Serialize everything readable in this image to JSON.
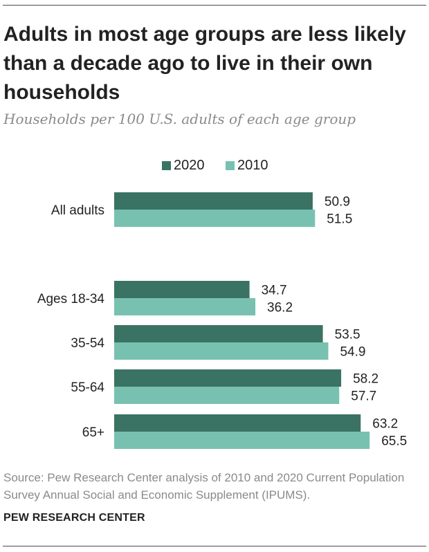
{
  "header": {
    "title": "Adults in most age groups are less likely than a decade ago to live in their own households",
    "subtitle": "Households per 100 U.S. adults of each age group"
  },
  "colors": {
    "series_2020": "#3a7363",
    "series_2010": "#78c1b1"
  },
  "chart_data": {
    "type": "bar",
    "orientation": "horizontal",
    "title": "Adults in most age groups are less likely than a decade ago to live in their own households",
    "subtitle": "Households per 100 U.S. adults of each age group",
    "categories": [
      "All adults",
      "Ages 18-34",
      "35-54",
      "55-64",
      "65+"
    ],
    "series": [
      {
        "name": "2020",
        "values": [
          50.9,
          34.7,
          53.5,
          58.2,
          63.2
        ]
      },
      {
        "name": "2010",
        "values": [
          51.5,
          36.2,
          54.9,
          57.7,
          65.5
        ]
      }
    ],
    "xlabel": "",
    "ylabel": "",
    "xlim": [
      0,
      100
    ],
    "grid": false,
    "legend_position": "top-center"
  },
  "footer": {
    "source": "Source: Pew Research Center analysis of 2010 and 2020 Current Population Survey Annual Social and Economic Supplement (IPUMS).",
    "brand": "PEW RESEARCH CENTER"
  }
}
